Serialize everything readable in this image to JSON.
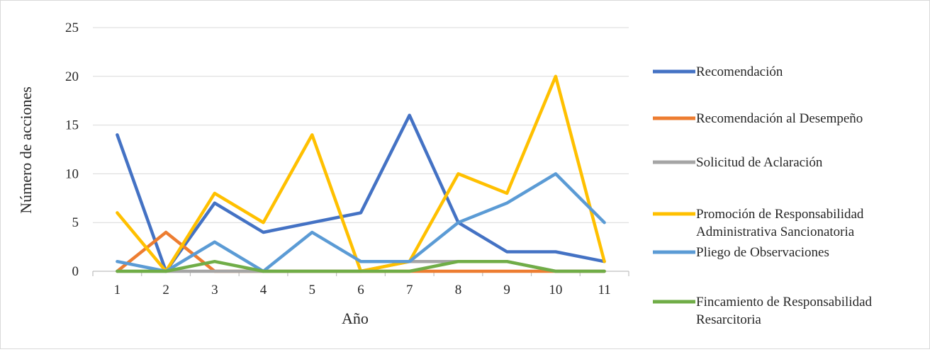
{
  "chart_data": {
    "type": "line",
    "xlabel": "Año",
    "ylabel": "Número de acciones",
    "ylim": [
      0,
      25
    ],
    "yticks": [
      0,
      5,
      10,
      15,
      20,
      25
    ],
    "x": [
      1,
      2,
      3,
      4,
      5,
      6,
      7,
      8,
      9,
      10,
      11
    ],
    "grid": "horizontal",
    "legend_position": "right",
    "series": [
      {
        "name": "Recomendación",
        "color": "#4472C4",
        "values": [
          14,
          0,
          7,
          4,
          5,
          6,
          16,
          5,
          2,
          2,
          1
        ]
      },
      {
        "name": "Recomendación al Desempeño",
        "color": "#ED7D31",
        "values": [
          0,
          4,
          0,
          0,
          0,
          0,
          0,
          0,
          0,
          0,
          0
        ]
      },
      {
        "name": "Solicitud de Aclaración",
        "color": "#A5A5A5",
        "values": [
          0,
          0,
          0,
          0,
          0,
          0,
          1,
          1,
          1,
          0,
          0
        ]
      },
      {
        "name": [
          "Promoción de Responsabilidad",
          "Administrativa Sancionatoria"
        ],
        "color": "#FFC000",
        "values": [
          6,
          0,
          8,
          5,
          14,
          0,
          1,
          10,
          8,
          20,
          1
        ]
      },
      {
        "name": "Pliego de Observaciones",
        "color": "#5B9BD5",
        "values": [
          1,
          0,
          3,
          0,
          4,
          1,
          1,
          5,
          7,
          10,
          5
        ]
      },
      {
        "name": [
          "Fincamiento de Responsabilidad",
          "Resarcitoria"
        ],
        "color": "#70AD47",
        "values": [
          0,
          0,
          1,
          0,
          0,
          0,
          0,
          1,
          1,
          0,
          0
        ]
      }
    ]
  }
}
